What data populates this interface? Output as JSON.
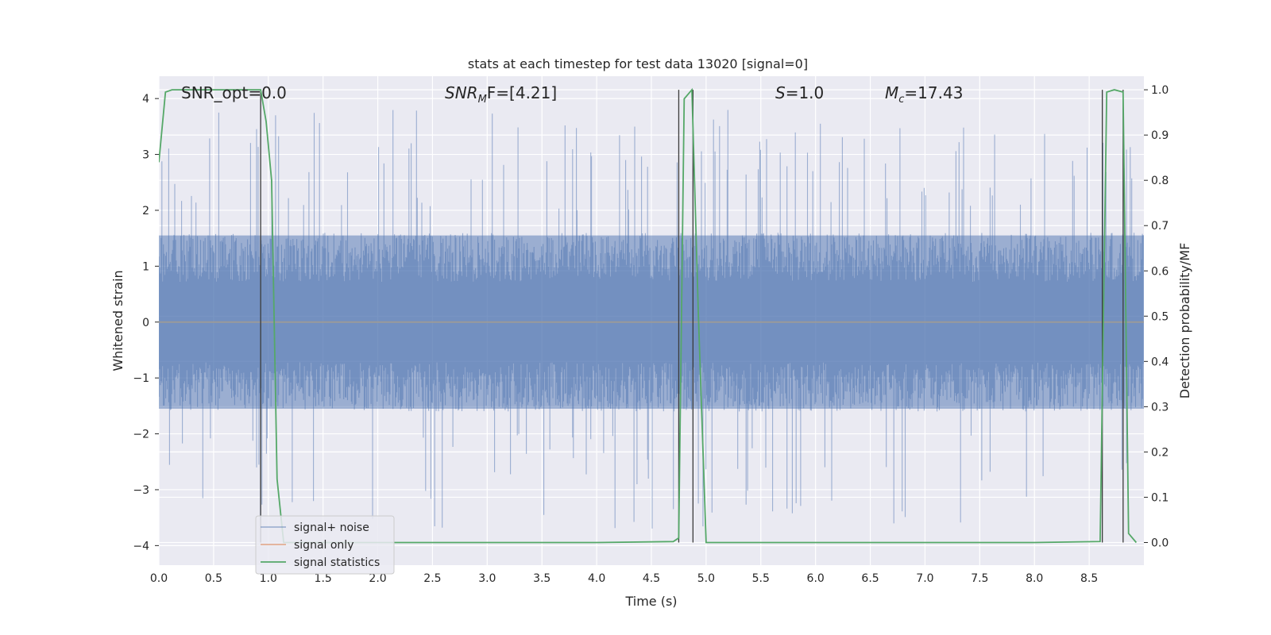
{
  "chart_data": {
    "type": "line",
    "title": "stats at each timestep for test data 13020 [signal=0]",
    "xlabel": "Time (s)",
    "ylabel": "Whitened strain",
    "y2label": "Detection probability/MF",
    "xlim": [
      0.0,
      9.0
    ],
    "ylim": [
      -4.35,
      4.4
    ],
    "y2lim": [
      -0.05,
      1.03
    ],
    "grid": true,
    "legend_position": "lower-left",
    "x_ticks": [
      "0.0",
      "0.5",
      "1.0",
      "1.5",
      "2.0",
      "2.5",
      "3.0",
      "3.5",
      "4.0",
      "4.5",
      "5.0",
      "5.5",
      "6.0",
      "6.5",
      "7.0",
      "7.5",
      "8.0",
      "8.5"
    ],
    "y_ticks": [
      "4",
      "3",
      "2",
      "1",
      "0",
      "−1",
      "−2",
      "−3",
      "−4"
    ],
    "y2_ticks": [
      "1.0",
      "0.9",
      "0.8",
      "0.7",
      "0.6",
      "0.5",
      "0.4",
      "0.3",
      "0.2",
      "0.1",
      "0.0"
    ],
    "annotations": {
      "snr_opt": "SNR_opt=0.0",
      "snr_mf_symbol": "SNR",
      "snr_mf_sub": "M",
      "snr_mf_tail": "F=[4.21]",
      "s_symbol": "S",
      "s_tail": "=1.0",
      "mc_symbol": "M",
      "mc_sub": "c",
      "mc_tail": "=17.43"
    },
    "series": [
      {
        "name": "signal+ noise",
        "color": "#4c72b0",
        "style": "dense noise band, approx. |y| < 1.6 with spikes up to about 3.8 and down to about -3.9",
        "typical_range": [
          -1.6,
          1.6
        ]
      },
      {
        "name": "signal only",
        "color": "#dd8452",
        "x": [
          0.0,
          9.0
        ],
        "y": [
          0.0,
          0.0
        ]
      },
      {
        "name": "signal statistics",
        "color": "#55a868",
        "axis": "right",
        "x": [
          0.0,
          0.06,
          0.12,
          0.93,
          0.98,
          1.03,
          1.08,
          1.14,
          2.0,
          3.0,
          4.0,
          4.7,
          4.75,
          4.8,
          4.87,
          4.93,
          5.0,
          6.0,
          7.0,
          8.0,
          8.6,
          8.66,
          8.73,
          8.81,
          8.86,
          8.93
        ],
        "y": [
          0.84,
          0.995,
          1.0,
          1.0,
          0.93,
          0.8,
          0.14,
          0.0,
          0.0,
          0.0,
          0.0,
          0.002,
          0.01,
          0.98,
          1.0,
          0.5,
          0.0,
          0.0,
          0.0,
          0.0,
          0.002,
          0.995,
          1.0,
          0.995,
          0.02,
          0.0
        ]
      }
    ],
    "vertical_lines": [
      0.93,
      4.75,
      4.88,
      8.62,
      8.81
    ],
    "vertical_line_color": "#3b3b3b"
  }
}
